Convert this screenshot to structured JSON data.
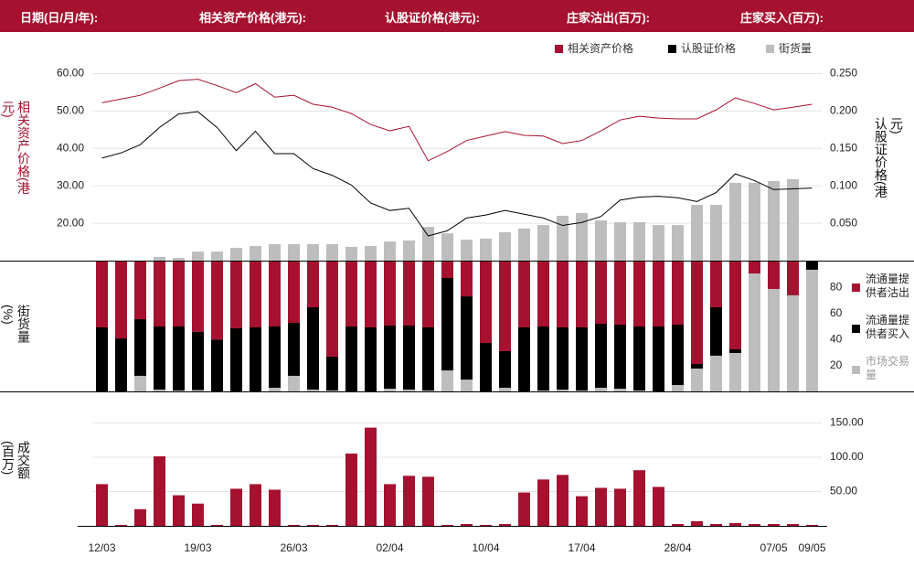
{
  "header": {
    "labels": [
      "日期(日/月/年):",
      "相关资产价格(港元):",
      "认股证价格(港元):",
      "庄家沽出(百万):",
      "庄家买入(百万):"
    ]
  },
  "chart_data": [
    {
      "type": "combo",
      "ylabel": "相关资产价格(港元)",
      "y2label": "认股证价格(港元)",
      "ylim": [
        10,
        65
      ],
      "yticks": [
        {
          "value": 20,
          "label": "20.00"
        },
        {
          "value": 30,
          "label": "30.00"
        },
        {
          "value": 40,
          "label": "40.00"
        },
        {
          "value": 50,
          "label": "50.00"
        },
        {
          "value": 60,
          "label": "60.00"
        }
      ],
      "y2lim": [
        0,
        0.275
      ],
      "y2ticks": [
        {
          "value": 0.05,
          "label": "0.050"
        },
        {
          "value": 0.1,
          "label": "0.100"
        },
        {
          "value": 0.15,
          "label": "0.150"
        },
        {
          "value": 0.2,
          "label": "0.200"
        },
        {
          "value": 0.25,
          "label": "0.250"
        }
      ],
      "y3lim": [
        0,
        100
      ],
      "grid": true,
      "series": [
        {
          "name": "相关资产价格",
          "type": "line",
          "axis": "y",
          "color": "#a6112f",
          "values": [
            52.2,
            53.2,
            54.2,
            56.1,
            58.1,
            58.5,
            56.8,
            54.9,
            57.3,
            53.7,
            54.2,
            51.8,
            51.0,
            49.3,
            46.4,
            44.7,
            45.9,
            36.7,
            39.2,
            42.1,
            43.3,
            44.5,
            43.5,
            43.3,
            41.3,
            42.1,
            44.7,
            47.6,
            48.6,
            48.1,
            47.9,
            47.9,
            50.3,
            53.5,
            52.0,
            50.3,
            51.0,
            51.8
          ]
        },
        {
          "name": "认股证价格",
          "type": "line",
          "axis": "y2",
          "color": "#000000",
          "values": [
            0.137,
            0.144,
            0.155,
            0.178,
            0.196,
            0.199,
            0.178,
            0.147,
            0.173,
            0.143,
            0.143,
            0.123,
            0.114,
            0.101,
            0.077,
            0.067,
            0.07,
            0.033,
            0.04,
            0.057,
            0.061,
            0.067,
            0.062,
            0.057,
            0.047,
            0.051,
            0.059,
            0.081,
            0.085,
            0.086,
            0.084,
            0.079,
            0.091,
            0.116,
            0.107,
            0.095,
            0.096,
            0.097
          ]
        },
        {
          "name": "街货量",
          "type": "bar",
          "axis": "y3",
          "color": "#bdbdbd",
          "values": [
            0,
            0,
            0,
            1.8,
            1.3,
            4.4,
            4.4,
            6.2,
            7.1,
            8,
            8,
            8,
            8,
            6.7,
            7.1,
            9.3,
            9.8,
            16.4,
            13.3,
            10.2,
            10.7,
            13.8,
            15.6,
            17.3,
            21.8,
            23.1,
            19.6,
            18.7,
            18.7,
            17.3,
            17.3,
            27.1,
            27.1,
            37.8,
            37.8,
            38.7,
            39.6,
            0
          ]
        }
      ]
    },
    {
      "type": "stacked_bar",
      "ylabel": "街货量(%)",
      "ylim": [
        0,
        100
      ],
      "yticks": [
        20,
        40,
        60,
        80
      ],
      "grid": false,
      "series": [
        {
          "name": "流通量提供者沽出",
          "color": "#a6112f",
          "values": [
            50.7,
            59.2,
            44.4,
            50,
            50,
            54,
            60,
            51.4,
            50.7,
            50,
            47.2,
            35.2,
            73.2,
            50,
            50.7,
            49.3,
            49.3,
            50.7,
            12.7,
            26.8,
            62.7,
            69,
            50.7,
            50,
            50.7,
            50.7,
            47.9,
            48.6,
            50,
            50,
            48.6,
            78.9,
            35.2,
            67.6,
            9.2,
            21.1,
            26,
            0
          ]
        },
        {
          "name": "流通量提供者买入",
          "color": "#000000",
          "values": [
            49.3,
            40.8,
            43.6,
            48.6,
            49.3,
            45,
            40,
            48.6,
            49.3,
            47.2,
            40.8,
            63.4,
            26.1,
            50,
            49.3,
            48.6,
            49.3,
            48.6,
            71.1,
            64.1,
            37.3,
            28.2,
            49.3,
            49.3,
            47.9,
            48.6,
            49.3,
            49.3,
            49.3,
            50,
            46.5,
            3.5,
            37.3,
            2.8,
            0,
            0,
            0,
            6.3
          ]
        },
        {
          "name": "市场交易量",
          "color": "#bdbdbd",
          "values": [
            0,
            0,
            12,
            1.4,
            0.7,
            1,
            0,
            0,
            0,
            2.8,
            12,
            1.4,
            0.7,
            0,
            0,
            2.1,
            1.4,
            0.7,
            16.2,
            9.1,
            0,
            2.8,
            0,
            0.7,
            1.4,
            0.7,
            2.8,
            2.1,
            0.7,
            0,
            4.9,
            17.6,
            27.5,
            29.6,
            90.8,
            78.9,
            74,
            93.7
          ]
        }
      ]
    },
    {
      "type": "bar",
      "ylabel": "成交额(百万)",
      "ylim": [
        0,
        160
      ],
      "yticks": [
        {
          "value": 50,
          "label": "50.00"
        },
        {
          "value": 100,
          "label": "100.00"
        },
        {
          "value": 150,
          "label": "150.00"
        }
      ],
      "grid": true,
      "color": "#a6112f",
      "categories": [
        "12/03",
        null,
        null,
        null,
        null,
        "19/03",
        null,
        null,
        null,
        null,
        "26/03",
        null,
        null,
        null,
        null,
        "02/04",
        null,
        null,
        null,
        null,
        "10/04",
        null,
        null,
        null,
        null,
        "17/04",
        null,
        null,
        null,
        null,
        "28/04",
        null,
        null,
        null,
        null,
        "07/05",
        null,
        "09/05"
      ],
      "values": [
        60.8,
        1.4,
        24.3,
        101.4,
        44.6,
        32.4,
        1.4,
        54.1,
        60.8,
        52.7,
        1.4,
        1.4,
        1.4,
        105.4,
        143.2,
        60.8,
        73,
        71.6,
        1.4,
        2.7,
        1.4,
        2.7,
        48.6,
        67.6,
        74.3,
        43.2,
        55.4,
        54.1,
        81.1,
        56.8,
        2.7,
        6.8,
        2.7,
        4.1,
        2.7,
        2.7,
        2.7,
        1.4
      ]
    }
  ]
}
